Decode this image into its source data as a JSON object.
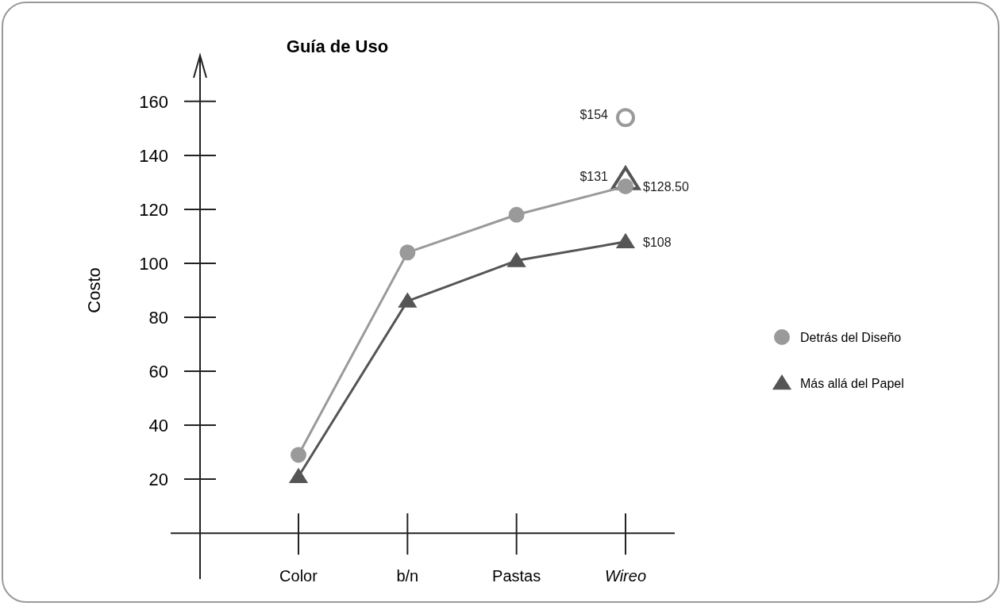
{
  "chart_data": {
    "type": "line",
    "title": "Guía de Uso",
    "ylabel": "Costo",
    "categories": [
      "Color",
      "b/n",
      "Pastas",
      "Wireo"
    ],
    "ylim": [
      -17,
      177
    ],
    "yticks": [
      20,
      40,
      60,
      80,
      100,
      120,
      140,
      160
    ],
    "legend": "right",
    "grid": false,
    "series": [
      {
        "name": "Detrás del Diseño",
        "color": "#9a9a9a",
        "marker": "circle",
        "values": [
          29,
          104,
          118,
          128.5
        ],
        "value_labels": [
          null,
          null,
          null,
          "$128.50"
        ]
      },
      {
        "name": "Más allá del Papel",
        "color": "#555555",
        "marker": "triangle",
        "values": [
          21,
          86,
          101,
          108
        ],
        "value_labels": [
          null,
          null,
          null,
          "$108"
        ]
      },
      {
        "type": "scatter",
        "color": "#9a9a9a",
        "marker": "circle",
        "x": [
          "Wireo"
        ],
        "values": [
          154
        ],
        "value_labels": [
          "$154"
        ]
      },
      {
        "type": "scatter",
        "color": "#555555",
        "marker": "triangle",
        "x": [
          "Wireo"
        ],
        "values": [
          131
        ],
        "value_labels": [
          "$131"
        ]
      }
    ]
  }
}
